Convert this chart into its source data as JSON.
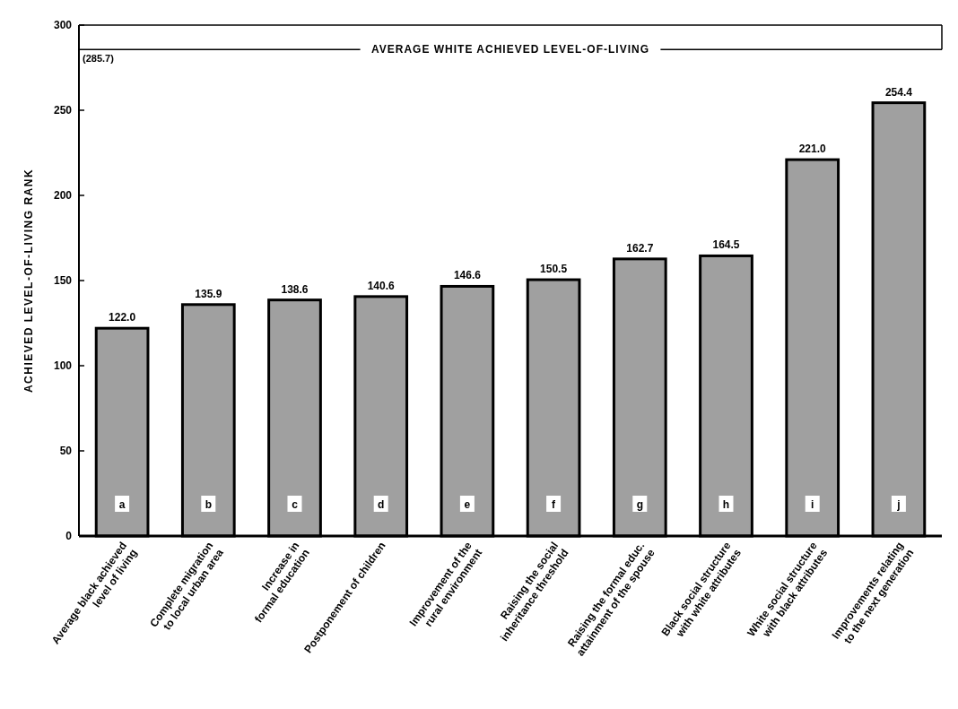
{
  "chart_data": {
    "type": "bar",
    "ylabel": "ACHIEVED LEVEL-OF-LIVING RANK",
    "categories": [
      "Average black achieved\nlevel of living",
      "Complete migration\nto local urban area",
      "Increase in\nformal education",
      "Postponement of children",
      "Improvement of the\nrural environment",
      "Raising the social\ninheritance threshold",
      "Raising the formal educ.\nattainment of the spouse",
      "Black social structure\nwith white attributes",
      "White social structure\nwith black attributes",
      "Improvements relating\nto the next generation"
    ],
    "values": [
      122.0,
      135.9,
      138.6,
      140.6,
      146.6,
      150.5,
      162.7,
      164.5,
      221.0,
      254.4
    ],
    "value_labels": [
      "122.0",
      "135.9",
      "138.6",
      "140.6",
      "146.6",
      "150.5",
      "162.7",
      "164.5",
      "221.0",
      "254.4"
    ],
    "color": "#a0a0a0",
    "ylim": [
      0,
      300
    ],
    "yticks": [
      0,
      50,
      100,
      150,
      200,
      250,
      300
    ],
    "grid": false,
    "ref_lines": [
      {
        "axis": "y",
        "value": 285.7,
        "label": "AVERAGE WHITE ACHIEVED LEVEL-OF-LIVING"
      }
    ],
    "annotations": [
      "(285.7)",
      "a",
      "b",
      "c",
      "d",
      "e",
      "f",
      "g",
      "h",
      "i",
      "j"
    ]
  }
}
